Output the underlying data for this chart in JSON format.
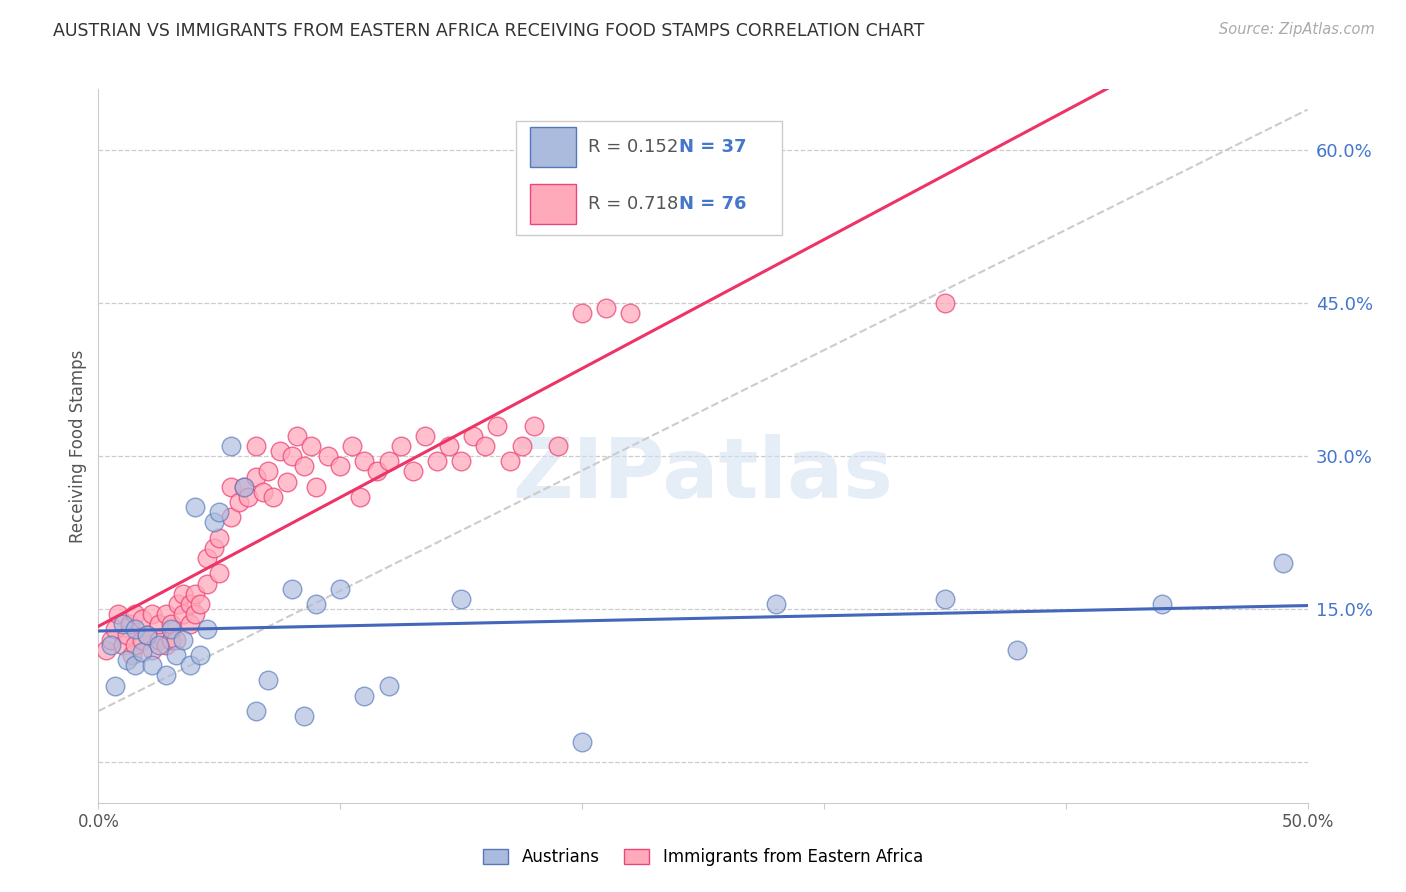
{
  "title": "AUSTRIAN VS IMMIGRANTS FROM EASTERN AFRICA RECEIVING FOOD STAMPS CORRELATION CHART",
  "source": "Source: ZipAtlas.com",
  "ylabel_left": "Receiving Food Stamps",
  "xmin": 0.0,
  "xmax": 0.5,
  "ymin": -0.04,
  "ymax": 0.66,
  "ytick_vals": [
    0.0,
    0.15,
    0.3,
    0.45,
    0.6
  ],
  "ytick_labels": [
    "",
    "15.0%",
    "30.0%",
    "45.0%",
    "60.0%"
  ],
  "xtick_vals": [
    0.0,
    0.1,
    0.2,
    0.3,
    0.4,
    0.5
  ],
  "xtick_labels": [
    "0.0%",
    "",
    "",
    "",
    "",
    "50.0%"
  ],
  "grid_color": "#cccccc",
  "background_color": "#ffffff",
  "blue_fill": "#aabbdd",
  "blue_edge": "#5577bb",
  "pink_fill": "#ffaabb",
  "pink_edge": "#ee4477",
  "blue_line": "#4466bb",
  "pink_line": "#ee3366",
  "diag_color": "#cccccc",
  "legend_R_blue": "R = 0.152",
  "legend_N_blue": "N = 37",
  "legend_R_pink": "R = 0.718",
  "legend_N_pink": "N = 76",
  "label_blue": "Austrians",
  "label_pink": "Immigrants from Eastern Africa",
  "watermark": "ZIPatlas",
  "ytick_color": "#4477cc",
  "aus_x": [
    0.005,
    0.007,
    0.01,
    0.012,
    0.015,
    0.015,
    0.018,
    0.02,
    0.022,
    0.025,
    0.028,
    0.03,
    0.032,
    0.035,
    0.038,
    0.04,
    0.042,
    0.045,
    0.048,
    0.05,
    0.055,
    0.06,
    0.065,
    0.07,
    0.08,
    0.085,
    0.09,
    0.1,
    0.11,
    0.12,
    0.15,
    0.2,
    0.28,
    0.35,
    0.38,
    0.44,
    0.49
  ],
  "aus_y": [
    0.115,
    0.075,
    0.135,
    0.1,
    0.13,
    0.095,
    0.108,
    0.125,
    0.095,
    0.115,
    0.085,
    0.13,
    0.105,
    0.12,
    0.095,
    0.25,
    0.105,
    0.13,
    0.235,
    0.245,
    0.31,
    0.27,
    0.05,
    0.08,
    0.17,
    0.045,
    0.155,
    0.17,
    0.065,
    0.075,
    0.16,
    0.02,
    0.155,
    0.16,
    0.11,
    0.155,
    0.195
  ],
  "eas_x": [
    0.003,
    0.005,
    0.007,
    0.008,
    0.01,
    0.012,
    0.013,
    0.014,
    0.015,
    0.015,
    0.018,
    0.018,
    0.02,
    0.022,
    0.022,
    0.025,
    0.025,
    0.028,
    0.028,
    0.03,
    0.03,
    0.032,
    0.033,
    0.035,
    0.035,
    0.038,
    0.038,
    0.04,
    0.04,
    0.042,
    0.045,
    0.045,
    0.048,
    0.05,
    0.05,
    0.055,
    0.055,
    0.058,
    0.06,
    0.062,
    0.065,
    0.065,
    0.068,
    0.07,
    0.072,
    0.075,
    0.078,
    0.08,
    0.082,
    0.085,
    0.088,
    0.09,
    0.095,
    0.1,
    0.105,
    0.108,
    0.11,
    0.115,
    0.12,
    0.125,
    0.13,
    0.135,
    0.14,
    0.145,
    0.15,
    0.155,
    0.16,
    0.165,
    0.17,
    0.175,
    0.18,
    0.19,
    0.2,
    0.21,
    0.22,
    0.35
  ],
  "eas_y": [
    0.11,
    0.12,
    0.13,
    0.145,
    0.115,
    0.125,
    0.135,
    0.105,
    0.115,
    0.145,
    0.12,
    0.14,
    0.125,
    0.11,
    0.145,
    0.12,
    0.135,
    0.115,
    0.145,
    0.12,
    0.135,
    0.12,
    0.155,
    0.145,
    0.165,
    0.135,
    0.155,
    0.165,
    0.145,
    0.155,
    0.2,
    0.175,
    0.21,
    0.185,
    0.22,
    0.24,
    0.27,
    0.255,
    0.27,
    0.26,
    0.28,
    0.31,
    0.265,
    0.285,
    0.26,
    0.305,
    0.275,
    0.3,
    0.32,
    0.29,
    0.31,
    0.27,
    0.3,
    0.29,
    0.31,
    0.26,
    0.295,
    0.285,
    0.295,
    0.31,
    0.285,
    0.32,
    0.295,
    0.31,
    0.295,
    0.32,
    0.31,
    0.33,
    0.295,
    0.31,
    0.33,
    0.31,
    0.44,
    0.445,
    0.44,
    0.45
  ]
}
